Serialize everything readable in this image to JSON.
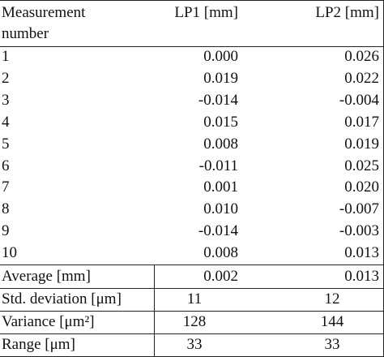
{
  "table": {
    "header": [
      "Measurement number",
      "LP1 [mm]",
      "LP2 [mm]"
    ],
    "rows": [
      [
        "1",
        "0.000",
        "0.026"
      ],
      [
        "2",
        "0.019",
        "0.022"
      ],
      [
        "3",
        "-0.014",
        "-0.004"
      ],
      [
        "4",
        "0.015",
        "0.017"
      ],
      [
        "5",
        "0.008",
        "0.019"
      ],
      [
        "6",
        "-0.011",
        "0.025"
      ],
      [
        "7",
        "0.001",
        "0.020"
      ],
      [
        "8",
        "0.010",
        "-0.007"
      ],
      [
        "9",
        "-0.014",
        "-0.003"
      ],
      [
        "10",
        "0.008",
        "0.013"
      ]
    ],
    "summary": [
      [
        "Average [mm]",
        "0.002",
        "0.013"
      ],
      [
        "Std. deviation [μm]",
        "11",
        "12"
      ],
      [
        "Variance [μm²]",
        "128",
        "144"
      ],
      [
        "Range [μm]",
        "33",
        "33"
      ]
    ]
  }
}
